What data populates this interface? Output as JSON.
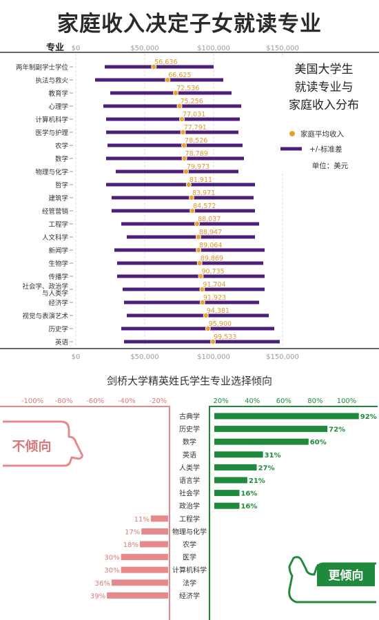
{
  "title": "家庭收入决定子女就读专业",
  "chart_data": [
    {
      "type": "dot-range",
      "title": "美国大学生就读专业与家庭收入分布",
      "title_lines": [
        "美国大学生",
        "就读专业与",
        "家庭收入分布"
      ],
      "ylabel": "专业",
      "legend": {
        "mean": "家庭平均收入",
        "range": "+/-标准差",
        "unit": "单位：美元",
        "placement": "right"
      },
      "xlim": [
        0,
        160000
      ],
      "xticks": [
        0,
        50000,
        100000,
        150000
      ],
      "xtick_labels": [
        "$0",
        "$50,000",
        "$100,000",
        "$150,000"
      ],
      "colors": {
        "mean": "#e8a12e",
        "range": "#4e1f78",
        "mean_label": "#e0962a"
      },
      "categories": [
        "两年制副学士学位",
        "执法与救火",
        "教育学",
        "心理学",
        "计算机科学",
        "医学与护理",
        "农学",
        "数学",
        "物理与化学",
        "哲学",
        "建筑学",
        "经管营销",
        "工程学",
        "人文科学",
        "新闻学",
        "生物学",
        "传播学",
        "社会学、政治学与人类学",
        "经济学",
        "视觉与表演艺术",
        "历史学",
        "英语"
      ],
      "category_lines": [
        [
          "两年制副学士学位"
        ],
        [
          "执法与救火"
        ],
        [
          "教育学"
        ],
        [
          "心理学"
        ],
        [
          "计算机科学"
        ],
        [
          "医学与护理"
        ],
        [
          "农学"
        ],
        [
          "数学"
        ],
        [
          "物理与化学"
        ],
        [
          "哲学"
        ],
        [
          "建筑学"
        ],
        [
          "经管营销"
        ],
        [
          "工程学"
        ],
        [
          "人文科学"
        ],
        [
          "新闻学"
        ],
        [
          "生物学"
        ],
        [
          "传播学"
        ],
        [
          "社会学、政治学",
          "与人类学"
        ],
        [
          "经济学"
        ],
        [
          "视觉与表演艺术"
        ],
        [
          "历史学"
        ],
        [
          "英语"
        ]
      ],
      "means": [
        56636,
        66625,
        72536,
        75256,
        77031,
        77791,
        78526,
        78789,
        79973,
        81911,
        83971,
        84572,
        88037,
        88947,
        89064,
        89869,
        90735,
        91704,
        91923,
        94381,
        95900,
        99533
      ],
      "mean_labels": [
        "56,636",
        "66,625",
        "72,536",
        "75,256",
        "77,031",
        "77,791",
        "78,526",
        "78,789",
        "79,973",
        "81,911",
        "83,971",
        "84,572",
        "88,037",
        "88,947",
        "89,064",
        "89,869",
        "90,735",
        "91,704",
        "91,923",
        "94,381",
        "95,900",
        "99,533"
      ],
      "range_low": [
        21000,
        14000,
        25000,
        20000,
        22000,
        22000,
        23000,
        22000,
        29000,
        22000,
        26000,
        26000,
        33000,
        37000,
        28000,
        30000,
        30000,
        34000,
        35000,
        37000,
        33000,
        35000
      ],
      "range_high": [
        100000,
        107000,
        113000,
        120000,
        119000,
        118000,
        121000,
        122000,
        118000,
        130000,
        129000,
        130000,
        133000,
        130000,
        137000,
        136000,
        137000,
        137000,
        133000,
        140000,
        144000,
        148000
      ]
    },
    {
      "type": "diverging-bar",
      "title": "剑桥大学精英姓氏学生专业选择倾向",
      "xlim": [
        -100,
        100
      ],
      "xticks": [
        -100,
        -80,
        -60,
        -40,
        -20,
        20,
        40,
        60,
        80,
        100
      ],
      "xtick_labels": [
        "-100%",
        "-80%",
        "-60%",
        "-40%",
        "-20%",
        "20%",
        "40%",
        "60%",
        "80%",
        "100%"
      ],
      "negative_label": "不倾向",
      "positive_label": "更倾向",
      "colors": {
        "positive": "#1f8a3b",
        "negative": "#e5898a",
        "positive_text": "#1f8a3b",
        "negative_text": "#d9797b"
      },
      "categories": [
        "古典学",
        "历史学",
        "数学",
        "英语",
        "人类学",
        "语言学",
        "社会学",
        "政治学",
        "工程学",
        "物理与化学",
        "农学",
        "医学",
        "计算机科学",
        "法学",
        "经济学"
      ],
      "values": [
        92,
        72,
        60,
        31,
        27,
        21,
        16,
        16,
        -11,
        -17,
        -18,
        -30,
        -30,
        -36,
        -39
      ],
      "value_labels": [
        "92%",
        "72%",
        "60%",
        "31%",
        "27%",
        "21%",
        "16%",
        "16%",
        "11%",
        "17%",
        "18%",
        "30%",
        "30%",
        "36%",
        "39%"
      ]
    }
  ]
}
